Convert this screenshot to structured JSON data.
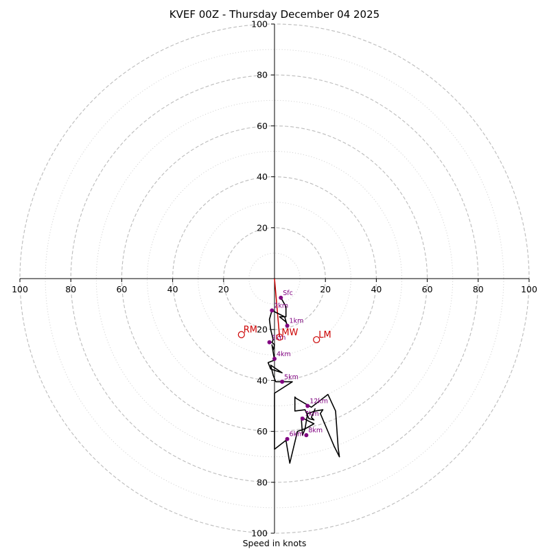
{
  "chart_data": {
    "type": "hodograph",
    "title": "KVEF 00Z - Thursday December 04 2025",
    "xlabel": "Speed in knots",
    "range": [
      -100,
      100
    ],
    "rings_major": [
      20,
      40,
      60,
      80,
      100
    ],
    "rings_minor": [
      10,
      30,
      50,
      70,
      90
    ],
    "tick_labels": [
      "100",
      "80",
      "60",
      "40",
      "20",
      "20",
      "40",
      "60",
      "80",
      "100"
    ],
    "tick_values": [
      -100,
      -80,
      -60,
      -40,
      -20,
      20,
      40,
      60,
      80,
      100
    ],
    "y_tick_labels": [
      "100",
      "80",
      "60",
      "40",
      "20",
      "20",
      "40",
      "60",
      "80",
      "100"
    ],
    "y_tick_values": [
      100,
      80,
      60,
      40,
      20,
      -20,
      -40,
      -60,
      -80,
      -100
    ],
    "trace": [
      [
        2.5,
        -7.5
      ],
      [
        4.5,
        -11
      ],
      [
        4.5,
        -15
      ],
      [
        2,
        -15
      ],
      [
        4.5,
        -17
      ],
      [
        5,
        -18.5
      ],
      [
        4,
        -15
      ],
      [
        -1,
        -12.5
      ],
      [
        -2,
        -16
      ],
      [
        -1.5,
        -20
      ],
      [
        -0.5,
        -24
      ],
      [
        -1,
        -25
      ],
      [
        0,
        -26
      ],
      [
        -0.5,
        -28
      ],
      [
        -1,
        -26
      ],
      [
        0,
        -32
      ],
      [
        -2.5,
        -33
      ],
      [
        -1.5,
        -35.5
      ],
      [
        3,
        -37
      ],
      [
        -1.5,
        -34
      ],
      [
        -0.5,
        -38
      ],
      [
        0.5,
        -40.5
      ],
      [
        7,
        -40.5
      ],
      [
        0,
        -45
      ],
      [
        0,
        -58
      ],
      [
        0,
        -67
      ],
      [
        4.5,
        -63.5
      ],
      [
        6,
        -72.5
      ],
      [
        9,
        -60
      ],
      [
        12,
        -59
      ],
      [
        15.5,
        -57
      ],
      [
        10.5,
        -54.5
      ],
      [
        11,
        -61.5
      ],
      [
        12,
        -59
      ],
      [
        13,
        -53
      ],
      [
        16,
        -52
      ],
      [
        19,
        -51.5
      ],
      [
        18,
        -53
      ],
      [
        23.5,
        -66
      ],
      [
        25.5,
        -70
      ],
      [
        25,
        -66.5
      ],
      [
        24,
        -52
      ],
      [
        21,
        -45.5
      ],
      [
        14.5,
        -50.5
      ],
      [
        8.5,
        -47
      ],
      [
        8,
        -46.5
      ],
      [
        8,
        -52
      ],
      [
        12,
        -51.5
      ],
      [
        13.5,
        -55
      ],
      [
        15.5,
        -55.5
      ],
      [
        14.5,
        -54.5
      ],
      [
        16,
        -51
      ]
    ],
    "height_markers": [
      {
        "label": "Sfc",
        "u": 2.5,
        "v": -7.5
      },
      {
        "label": "1km",
        "u": 5,
        "v": -18.5
      },
      {
        "label": "2km",
        "u": -1,
        "v": -12.5
      },
      {
        "label": "3km",
        "u": -2,
        "v": -25
      },
      {
        "label": "4km",
        "u": 0,
        "v": -31.5
      },
      {
        "label": "5km",
        "u": 3,
        "v": -40.5
      },
      {
        "label": "6km",
        "u": 5,
        "v": -63
      },
      {
        "label": "7km",
        "u": 11,
        "v": -55
      },
      {
        "label": "8km",
        "u": 12.5,
        "v": -61.5
      },
      {
        "label": "12km",
        "u": 13,
        "v": -50
      }
    ],
    "motions": [
      {
        "label": "RM",
        "u": -13,
        "v": -22
      },
      {
        "label": "LM",
        "u": 16.5,
        "v": -24
      },
      {
        "label": "MW",
        "u": 2,
        "v": -23
      }
    ],
    "shear_line": {
      "from": [
        0,
        0
      ],
      "to": [
        2,
        -23
      ]
    },
    "colors": {
      "trace": "#000000",
      "markers": "#800080",
      "motion": "#cc0000",
      "grid_major": "#bbbbbb",
      "grid_minor": "#cccccc",
      "axis": "#000000"
    }
  }
}
